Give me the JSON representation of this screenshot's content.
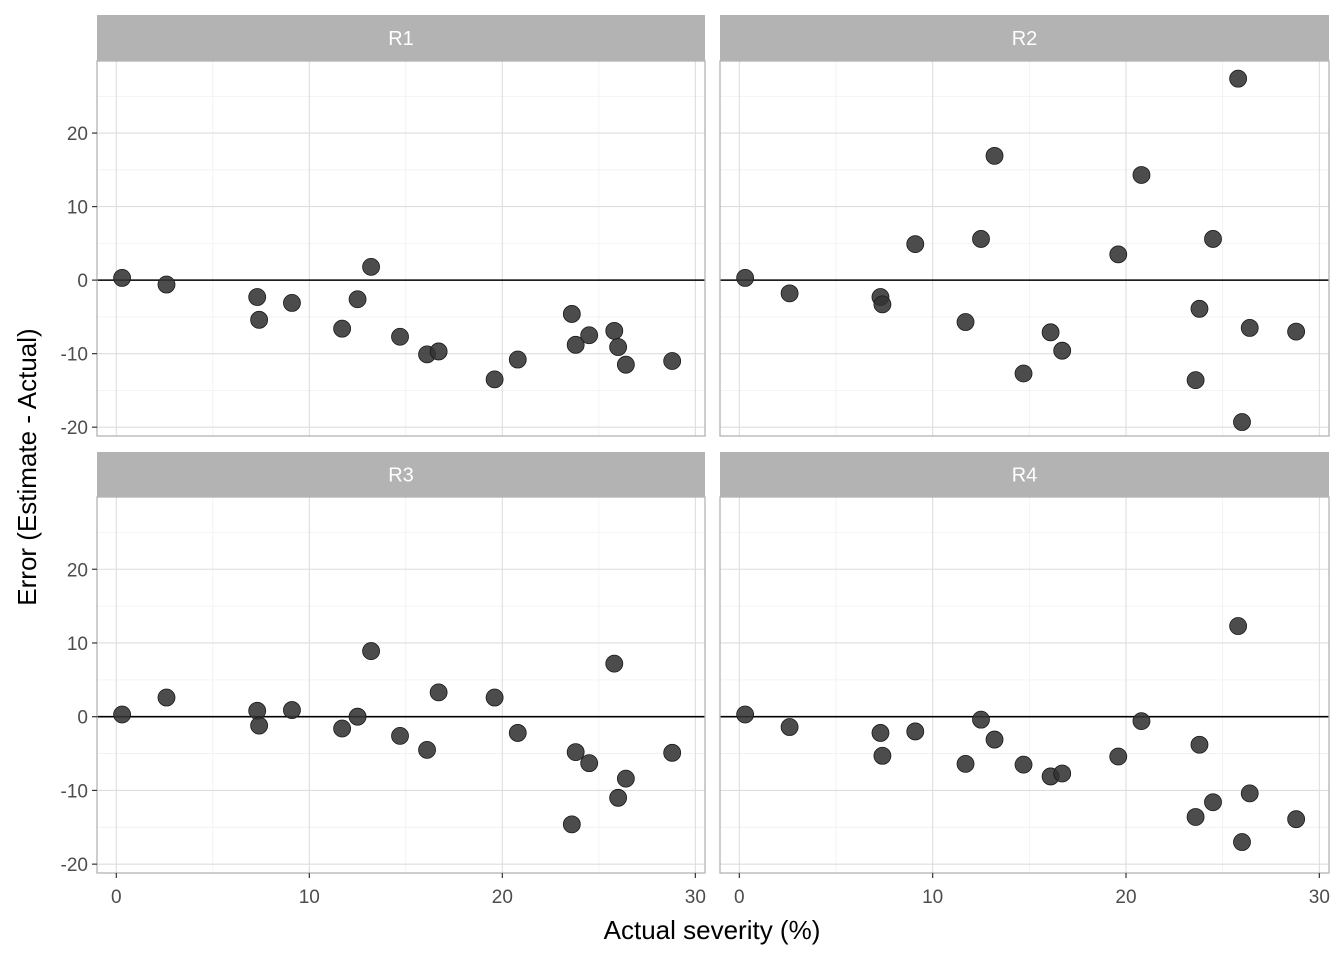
{
  "chart_data": {
    "type": "scatter",
    "xlabel": "Actual severity (%)",
    "ylabel": "Error (Estimate - Actual)",
    "xlim": [
      -1,
      30.5
    ],
    "ylim": [
      -21.2,
      29.8
    ],
    "x_ticks": [
      "0",
      "10",
      "20",
      "30"
    ],
    "y_ticks": [
      "-20",
      "-10",
      "0",
      "10",
      "20"
    ],
    "reference_line_y": 0,
    "grid": true,
    "point_color": "#333333",
    "strip_color": "#b3b3b3",
    "panels": [
      {
        "strip": "R1",
        "points": [
          {
            "x": 0.3,
            "y": 0.3
          },
          {
            "x": 2.6,
            "y": -0.6
          },
          {
            "x": 7.3,
            "y": -2.3
          },
          {
            "x": 7.4,
            "y": -5.4
          },
          {
            "x": 9.1,
            "y": -3.1
          },
          {
            "x": 11.7,
            "y": -6.6
          },
          {
            "x": 12.5,
            "y": -2.6
          },
          {
            "x": 13.2,
            "y": 1.8
          },
          {
            "x": 14.7,
            "y": -7.7
          },
          {
            "x": 16.1,
            "y": -10.1
          },
          {
            "x": 16.7,
            "y": -9.7
          },
          {
            "x": 19.6,
            "y": -13.5
          },
          {
            "x": 20.8,
            "y": -10.8
          },
          {
            "x": 23.6,
            "y": -4.6
          },
          {
            "x": 23.8,
            "y": -8.8
          },
          {
            "x": 24.5,
            "y": -7.5
          },
          {
            "x": 25.8,
            "y": -6.9
          },
          {
            "x": 26.0,
            "y": -9.1
          },
          {
            "x": 26.4,
            "y": -11.5
          },
          {
            "x": 28.8,
            "y": -11.0
          }
        ]
      },
      {
        "strip": "R2",
        "points": [
          {
            "x": 0.3,
            "y": 0.3
          },
          {
            "x": 2.6,
            "y": -1.8
          },
          {
            "x": 7.3,
            "y": -2.3
          },
          {
            "x": 7.4,
            "y": -3.3
          },
          {
            "x": 9.1,
            "y": 4.9
          },
          {
            "x": 11.7,
            "y": -5.7
          },
          {
            "x": 12.5,
            "y": 5.6
          },
          {
            "x": 13.2,
            "y": 16.9
          },
          {
            "x": 14.7,
            "y": -12.7
          },
          {
            "x": 16.1,
            "y": -7.1
          },
          {
            "x": 16.7,
            "y": -9.6
          },
          {
            "x": 19.6,
            "y": 3.5
          },
          {
            "x": 20.8,
            "y": 14.3
          },
          {
            "x": 23.6,
            "y": -13.6
          },
          {
            "x": 23.8,
            "y": -3.9
          },
          {
            "x": 24.5,
            "y": 5.6
          },
          {
            "x": 25.8,
            "y": 27.4
          },
          {
            "x": 26.0,
            "y": -19.3
          },
          {
            "x": 26.4,
            "y": -6.5
          },
          {
            "x": 28.8,
            "y": -7.0
          }
        ]
      },
      {
        "strip": "R3",
        "points": [
          {
            "x": 0.3,
            "y": 0.3
          },
          {
            "x": 2.6,
            "y": 2.6
          },
          {
            "x": 7.3,
            "y": 0.8
          },
          {
            "x": 7.4,
            "y": -1.2
          },
          {
            "x": 9.1,
            "y": 0.9
          },
          {
            "x": 11.7,
            "y": -1.6
          },
          {
            "x": 12.5,
            "y": 0.0
          },
          {
            "x": 13.2,
            "y": 8.9
          },
          {
            "x": 14.7,
            "y": -2.6
          },
          {
            "x": 16.1,
            "y": -4.5
          },
          {
            "x": 16.7,
            "y": 3.3
          },
          {
            "x": 19.6,
            "y": 2.6
          },
          {
            "x": 20.8,
            "y": -2.2
          },
          {
            "x": 23.6,
            "y": -14.6
          },
          {
            "x": 23.8,
            "y": -4.8
          },
          {
            "x": 24.5,
            "y": -6.3
          },
          {
            "x": 25.8,
            "y": 7.2
          },
          {
            "x": 26.0,
            "y": -11.0
          },
          {
            "x": 26.4,
            "y": -8.4
          },
          {
            "x": 28.8,
            "y": -4.9
          }
        ]
      },
      {
        "strip": "R4",
        "points": [
          {
            "x": 0.3,
            "y": 0.3
          },
          {
            "x": 2.6,
            "y": -1.4
          },
          {
            "x": 7.3,
            "y": -2.2
          },
          {
            "x": 7.4,
            "y": -5.3
          },
          {
            "x": 9.1,
            "y": -2.0
          },
          {
            "x": 11.7,
            "y": -6.4
          },
          {
            "x": 12.5,
            "y": -0.4
          },
          {
            "x": 13.2,
            "y": -3.1
          },
          {
            "x": 14.7,
            "y": -6.5
          },
          {
            "x": 16.1,
            "y": -8.1
          },
          {
            "x": 16.7,
            "y": -7.7
          },
          {
            "x": 19.6,
            "y": -5.4
          },
          {
            "x": 20.8,
            "y": -0.6
          },
          {
            "x": 23.6,
            "y": -13.6
          },
          {
            "x": 23.8,
            "y": -3.8
          },
          {
            "x": 24.5,
            "y": -11.6
          },
          {
            "x": 25.8,
            "y": 12.3
          },
          {
            "x": 26.0,
            "y": -17.0
          },
          {
            "x": 26.4,
            "y": -10.4
          },
          {
            "x": 28.8,
            "y": -13.9
          }
        ]
      }
    ]
  }
}
